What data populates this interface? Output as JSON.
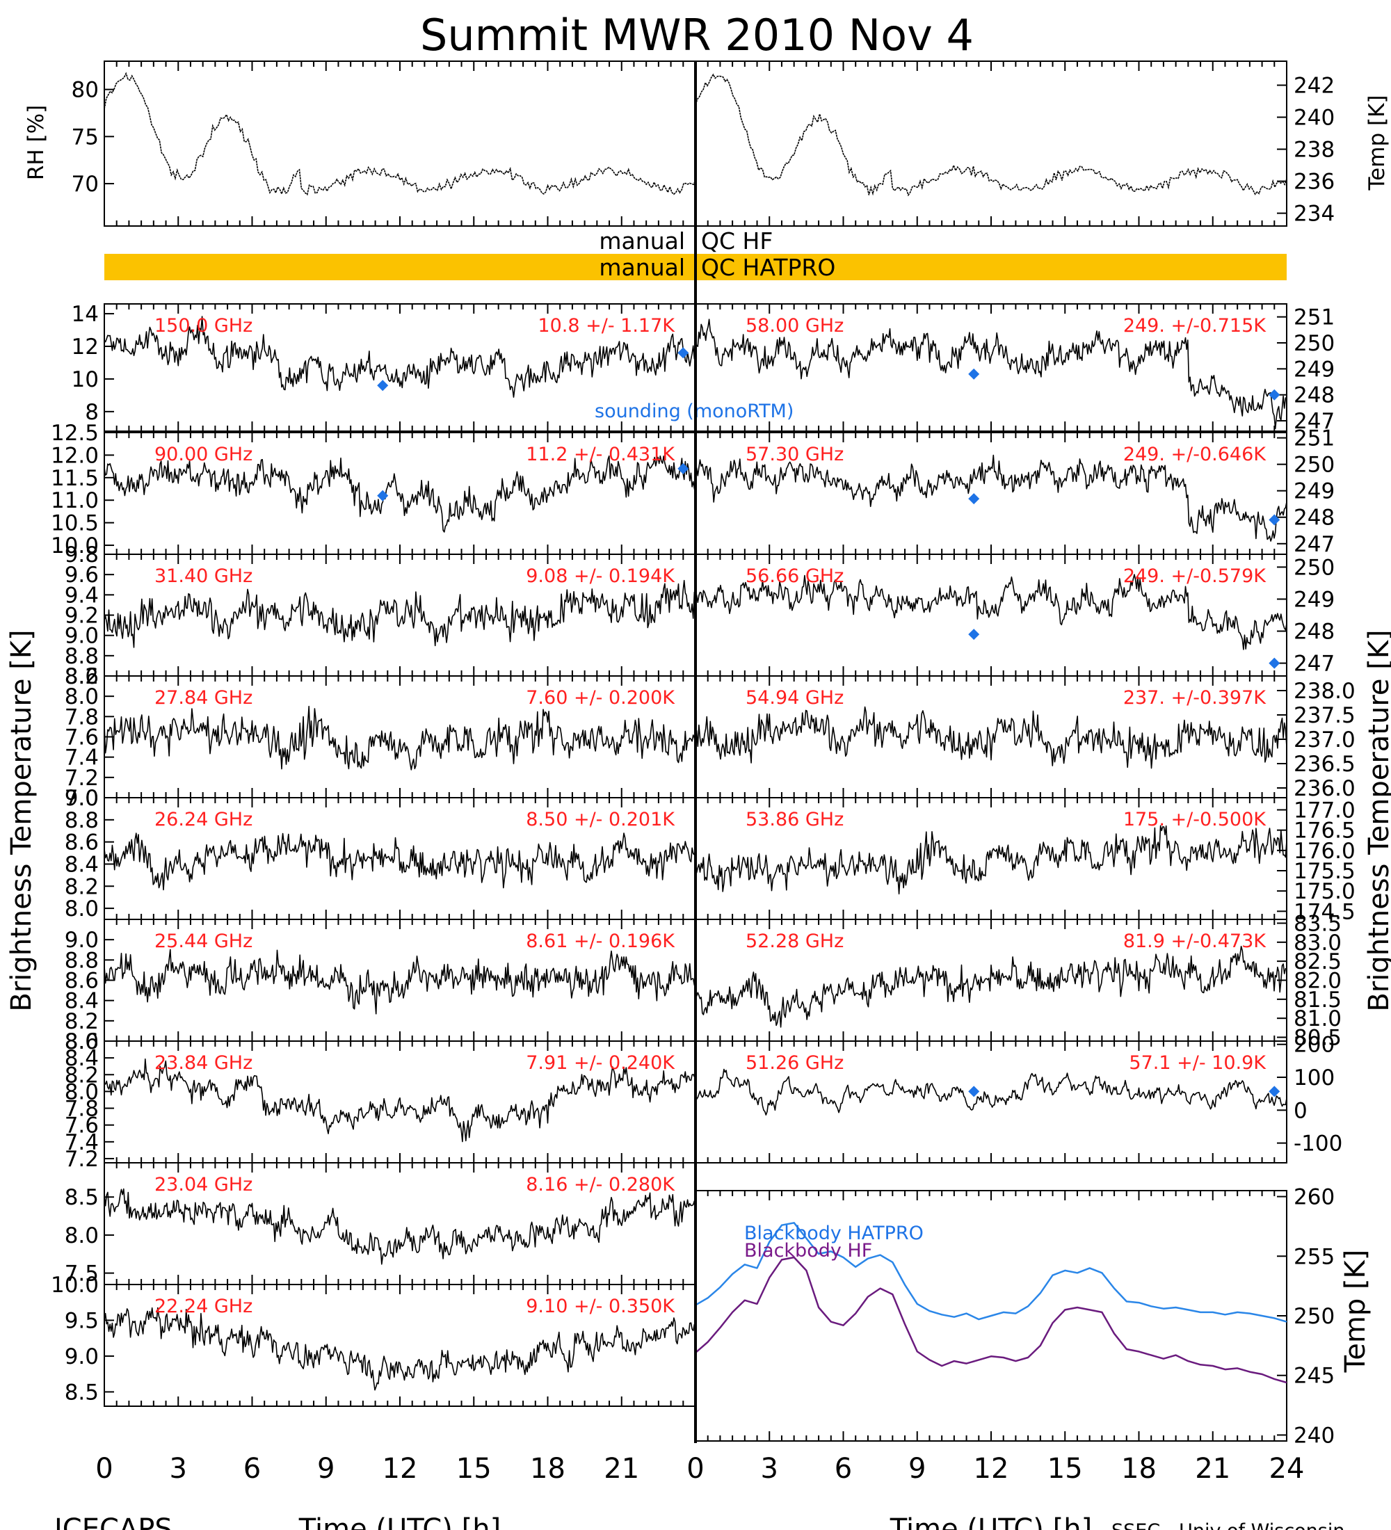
{
  "title": "Summit MWR 2010 Nov  4",
  "footer_left": "ICECAPS",
  "footer_right": "SSEC - Univ of Wisconsin",
  "colors": {
    "flag": "#fbc200",
    "channel_label": "#ff2020",
    "sounding": "#1e73e6",
    "bb_hatpro": "#2a86e8",
    "bb_hf": "#6a1b7e"
  },
  "qc": {
    "left_1": "manual",
    "right_1": "QC HF",
    "left_2": "manual",
    "right_2": "QC HATPRO"
  },
  "y_axis_left": "Brightness Temperature [K]",
  "y_axis_right": "Brightness Temperature [K]",
  "legends": {
    "sounding": "sounding (monoRTM)",
    "bb_hatpro": "Blackbody HATPRO",
    "bb_hf": "Blackbody HF"
  },
  "chart_data": {
    "type": "scatter",
    "x_range": [
      0,
      24
    ],
    "x_ticks": [
      0,
      3,
      6,
      9,
      12,
      15,
      18,
      21,
      24
    ],
    "x_label": "Time (UTC) [h]",
    "met": {
      "rh_label": "RH [%]",
      "rh_ticks": [
        "70",
        "75",
        "80"
      ],
      "rh_range": [
        65.5,
        83
      ],
      "temp_label": "Temp [K]",
      "temp_ticks": [
        "234",
        "236",
        "238",
        "240",
        "242"
      ],
      "temp_range": [
        233.2,
        243.5
      ]
    },
    "left_panels": [
      {
        "freq": "150.0 GHz",
        "stats": "10.8 +/- 1.17K",
        "ticks": [
          "8",
          "10",
          "12",
          "14"
        ],
        "range": [
          6.8,
          14.6
        ],
        "sounding": [
          [
            11.3,
            9.6
          ],
          [
            23.5,
            11.6
          ]
        ]
      },
      {
        "freq": "90.00 GHz",
        "stats": "11.2 +/- 0.431K",
        "ticks": [
          "10.0",
          "10.5",
          "11.0",
          "11.5",
          "12.0",
          "12.5"
        ],
        "range": [
          9.8,
          12.5
        ],
        "sounding": [
          [
            11.3,
            11.1
          ],
          [
            23.5,
            11.7
          ]
        ]
      },
      {
        "freq": "31.40 GHz",
        "stats": "9.08 +/- 0.194K",
        "ticks": [
          "8.6",
          "8.8",
          "9.0",
          "9.2",
          "9.4",
          "9.6",
          "9.8"
        ],
        "range": [
          8.6,
          9.8
        ],
        "sounding": []
      },
      {
        "freq": "27.84 GHz",
        "stats": "7.60 +/- 0.200K",
        "ticks": [
          "7.0",
          "7.2",
          "7.4",
          "7.6",
          "7.8",
          "8.0",
          "8.2"
        ],
        "range": [
          7.0,
          8.2
        ],
        "sounding": []
      },
      {
        "freq": "26.24 GHz",
        "stats": "8.50 +/- 0.201K",
        "ticks": [
          "8.0",
          "8.2",
          "8.4",
          "8.6",
          "8.8",
          "9.0"
        ],
        "range": [
          7.9,
          9.0
        ],
        "sounding": []
      },
      {
        "freq": "25.44 GHz",
        "stats": "8.61 +/- 0.196K",
        "ticks": [
          "8.0",
          "8.2",
          "8.4",
          "8.6",
          "8.8",
          "9.0"
        ],
        "range": [
          8.0,
          9.2
        ],
        "sounding": []
      },
      {
        "freq": "23.84 GHz",
        "stats": "7.91 +/- 0.240K",
        "ticks": [
          "7.2",
          "7.4",
          "7.6",
          "7.8",
          "8.0",
          "8.2",
          "8.4",
          "8.6"
        ],
        "range": [
          7.15,
          8.6
        ],
        "sounding": []
      },
      {
        "freq": "23.04 GHz",
        "stats": "8.16 +/- 0.280K",
        "ticks": [
          "7.5",
          "8.0",
          "8.5"
        ],
        "range": [
          7.35,
          8.95
        ],
        "sounding": []
      },
      {
        "freq": "22.24 GHz",
        "stats": "9.10 +/- 0.350K",
        "ticks": [
          "8.5",
          "9.0",
          "9.5",
          "10.0"
        ],
        "range": [
          8.3,
          10.0
        ],
        "sounding": []
      }
    ],
    "right_panels": [
      {
        "freq": "58.00 GHz",
        "stats": "249. +/-0.715K",
        "ticks": [
          "247",
          "248",
          "249",
          "250",
          "251"
        ],
        "range": [
          246.6,
          251.5
        ],
        "sounding": [
          [
            11.3,
            248.8
          ],
          [
            23.5,
            248
          ]
        ]
      },
      {
        "freq": "57.30 GHz",
        "stats": "249. +/-0.646K",
        "ticks": [
          "247",
          "248",
          "249",
          "250",
          "251"
        ],
        "range": [
          246.6,
          251.2
        ],
        "sounding": [
          [
            11.3,
            248.7
          ],
          [
            23.5,
            247.9
          ]
        ]
      },
      {
        "freq": "56.66 GHz",
        "stats": "249. +/-0.579K",
        "ticks": [
          "247",
          "248",
          "249",
          "250"
        ],
        "range": [
          246.6,
          250.4
        ],
        "sounding": [
          [
            11.3,
            247.9
          ],
          [
            23.5,
            247
          ]
        ]
      },
      {
        "freq": "54.94 GHz",
        "stats": "237. +/-0.397K",
        "ticks": [
          "236.0",
          "236.5",
          "237.0",
          "237.5",
          "238.0"
        ],
        "range": [
          235.8,
          238.3
        ],
        "sounding": []
      },
      {
        "freq": "53.86 GHz",
        "stats": "175. +/-0.500K",
        "ticks": [
          "174.5",
          "175.0",
          "175.5",
          "176.0",
          "176.5",
          "177.0"
        ],
        "range": [
          174.3,
          177.3
        ],
        "sounding": []
      },
      {
        "freq": "52.28 GHz",
        "stats": "81.9 +/-0.473K",
        "ticks": [
          "80.5",
          "81.0",
          "81.5",
          "82.0",
          "82.5",
          "83.0",
          "83.5"
        ],
        "range": [
          80.4,
          83.6
        ],
        "sounding": []
      },
      {
        "freq": "51.26 GHz",
        "stats": "57.1 +/- 10.9K",
        "ticks": [
          "-100",
          "0",
          "100",
          "200"
        ],
        "range": [
          -160,
          210
        ],
        "sounding": [
          [
            11.3,
            57
          ],
          [
            23.5,
            57
          ]
        ]
      }
    ],
    "blackbody": {
      "ticks": [
        "240",
        "245",
        "250",
        "255",
        "260"
      ],
      "range": [
        239.5,
        260.5
      ],
      "hatpro": [
        [
          0,
          250.9
        ],
        [
          0.5,
          251.5
        ],
        [
          1,
          252.4
        ],
        [
          1.5,
          253.5
        ],
        [
          2,
          254.3
        ],
        [
          2.5,
          254
        ],
        [
          3,
          256.2
        ],
        [
          3.5,
          257.6
        ],
        [
          4,
          257.8
        ],
        [
          4.5,
          256.5
        ],
        [
          5,
          255.2
        ],
        [
          5.5,
          255.4
        ],
        [
          6,
          254.9
        ],
        [
          6.5,
          254.1
        ],
        [
          7,
          254.8
        ],
        [
          7.5,
          255.1
        ],
        [
          8,
          254.5
        ],
        [
          8.5,
          252.6
        ],
        [
          9,
          251
        ],
        [
          9.5,
          250.4
        ],
        [
          10,
          250.1
        ],
        [
          10.5,
          249.9
        ],
        [
          11,
          250.2
        ],
        [
          11.5,
          249.7
        ],
        [
          12,
          250
        ],
        [
          12.5,
          250.3
        ],
        [
          13,
          250.2
        ],
        [
          13.5,
          250.8
        ],
        [
          14,
          251.9
        ],
        [
          14.5,
          253.4
        ],
        [
          15,
          253.8
        ],
        [
          15.5,
          253.6
        ],
        [
          16,
          254
        ],
        [
          16.5,
          253.6
        ],
        [
          17,
          252.3
        ],
        [
          17.5,
          251.2
        ],
        [
          18,
          251.1
        ],
        [
          18.5,
          250.8
        ],
        [
          19,
          250.6
        ],
        [
          19.5,
          250.7
        ],
        [
          20,
          250.5
        ],
        [
          20.5,
          250.3
        ],
        [
          21,
          250.3
        ],
        [
          21.5,
          250.1
        ],
        [
          22,
          250.3
        ],
        [
          22.5,
          250.2
        ],
        [
          23,
          250
        ],
        [
          23.5,
          249.8
        ],
        [
          24,
          249.5
        ]
      ],
      "hf": [
        [
          0,
          246.9
        ],
        [
          0.5,
          247.8
        ],
        [
          1,
          249
        ],
        [
          1.5,
          250.3
        ],
        [
          2,
          251.3
        ],
        [
          2.5,
          251
        ],
        [
          3,
          253.2
        ],
        [
          3.5,
          254.7
        ],
        [
          4,
          254.9
        ],
        [
          4.5,
          253.8
        ],
        [
          5,
          250.7
        ],
        [
          5.5,
          249.5
        ],
        [
          6,
          249.2
        ],
        [
          6.5,
          250.2
        ],
        [
          7,
          251.6
        ],
        [
          7.5,
          252.3
        ],
        [
          8,
          251.8
        ],
        [
          8.5,
          249.3
        ],
        [
          9,
          247
        ],
        [
          9.5,
          246.3
        ],
        [
          10,
          245.8
        ],
        [
          10.5,
          246.2
        ],
        [
          11,
          246
        ],
        [
          11.5,
          246.3
        ],
        [
          12,
          246.6
        ],
        [
          12.5,
          246.5
        ],
        [
          13,
          246.2
        ],
        [
          13.5,
          246.5
        ],
        [
          14,
          247.5
        ],
        [
          14.5,
          249.4
        ],
        [
          15,
          250.5
        ],
        [
          15.5,
          250.7
        ],
        [
          16,
          250.5
        ],
        [
          16.5,
          250.3
        ],
        [
          17,
          248.5
        ],
        [
          17.5,
          247.2
        ],
        [
          18,
          247
        ],
        [
          18.5,
          246.7
        ],
        [
          19,
          246.4
        ],
        [
          19.5,
          246.7
        ],
        [
          20,
          246.2
        ],
        [
          20.5,
          245.9
        ],
        [
          21,
          245.8
        ],
        [
          21.5,
          245.5
        ],
        [
          22,
          245.6
        ],
        [
          22.5,
          245.3
        ],
        [
          23,
          245.1
        ],
        [
          23.5,
          244.7
        ],
        [
          24,
          244.4
        ]
      ]
    }
  }
}
